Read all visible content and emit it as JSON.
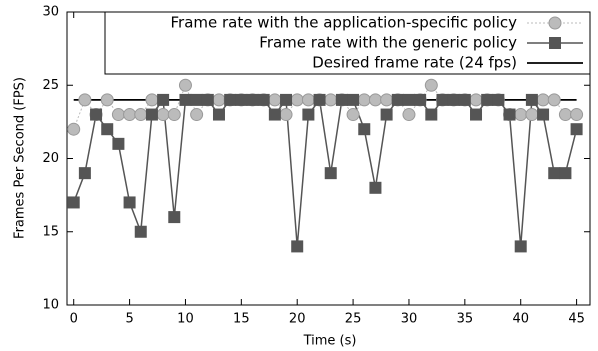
{
  "chart_data": {
    "type": "line",
    "x_label": "Time (s)",
    "y_label": "Frames Per Second (FPS)",
    "x": [
      0,
      1,
      2,
      3,
      4,
      5,
      6,
      7,
      8,
      9,
      10,
      11,
      12,
      13,
      14,
      15,
      16,
      17,
      18,
      19,
      20,
      21,
      22,
      23,
      24,
      25,
      26,
      27,
      28,
      29,
      30,
      31,
      32,
      33,
      34,
      35,
      36,
      37,
      38,
      39,
      40,
      41,
      42,
      43,
      44,
      45
    ],
    "series": [
      {
        "name": "Frame rate with the application-specific policy",
        "color": "#bbbbbb",
        "marker": "circle",
        "values": [
          22,
          24,
          23,
          24,
          23,
          23,
          23,
          24,
          23,
          23,
          25,
          23,
          24,
          24,
          24,
          24,
          24,
          24,
          24,
          23,
          24,
          24,
          24,
          24,
          24,
          23,
          24,
          24,
          24,
          24,
          23,
          24,
          25,
          24,
          24,
          24,
          24,
          24,
          24,
          23,
          23,
          23,
          24,
          24,
          23,
          23
        ]
      },
      {
        "name": "Frame rate with the generic policy",
        "color": "#555555",
        "marker": "square",
        "values": [
          17,
          19,
          23,
          22,
          21,
          17,
          15,
          23,
          24,
          16,
          24,
          24,
          24,
          23,
          24,
          24,
          24,
          24,
          23,
          24,
          14,
          23,
          24,
          19,
          24,
          24,
          22,
          18,
          23,
          24,
          24,
          24,
          23,
          24,
          24,
          24,
          23,
          24,
          24,
          23,
          14,
          24,
          23,
          19,
          19,
          22
        ]
      },
      {
        "name": "Desired frame rate (24 fps)",
        "color": "#000000",
        "marker": "none",
        "values": [
          24,
          24,
          24,
          24,
          24,
          24,
          24,
          24,
          24,
          24,
          24,
          24,
          24,
          24,
          24,
          24,
          24,
          24,
          24,
          24,
          24,
          24,
          24,
          24,
          24,
          24,
          24,
          24,
          24,
          24,
          24,
          24,
          24,
          24,
          24,
          24,
          24,
          24,
          24,
          24,
          24,
          24,
          24,
          24,
          24,
          24
        ]
      }
    ],
    "xlim": [
      -0.6,
      46.2
    ],
    "ylim": [
      10,
      30
    ],
    "xticks": [
      0,
      5,
      10,
      15,
      20,
      25,
      30,
      35,
      40,
      45
    ],
    "yticks": [
      10,
      15,
      20,
      25,
      30
    ],
    "legend": "top-right"
  }
}
